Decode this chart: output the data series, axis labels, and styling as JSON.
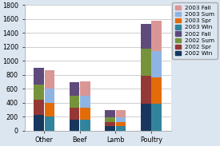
{
  "categories": [
    "Other",
    "Beef",
    "Lamb",
    "Poultry"
  ],
  "series": {
    "2002 Win": {
      "values": [
        220,
        155,
        65,
        390
      ],
      "color": "#17375E"
    },
    "2002 Spr": {
      "values": [
        220,
        175,
        55,
        390
      ],
      "color": "#953735"
    },
    "2002 Sum": {
      "values": [
        220,
        165,
        75,
        390
      ],
      "color": "#76933C"
    },
    "2002 Fall": {
      "values": [
        240,
        195,
        95,
        360
      ],
      "color": "#604A7B"
    },
    "2003 Win": {
      "values": [
        200,
        155,
        65,
        380
      ],
      "color": "#31849B"
    },
    "2003 Spr": {
      "values": [
        200,
        175,
        55,
        380
      ],
      "color": "#E36C09"
    },
    "2003 Sum": {
      "values": [
        200,
        165,
        75,
        380
      ],
      "color": "#8EB4E3"
    },
    "2003 Fall": {
      "values": [
        270,
        205,
        100,
        440
      ],
      "color": "#D99694"
    }
  },
  "year2002_order": [
    "2002 Win",
    "2002 Spr",
    "2002 Sum",
    "2002 Fall"
  ],
  "year2003_order": [
    "2003 Win",
    "2003 Spr",
    "2003 Sum",
    "2003 Fall"
  ],
  "legend_order": [
    "2003 Fall",
    "2003 Sum",
    "2003 Spr",
    "2003 Win",
    "2002 Fall",
    "2002 Sum",
    "2002 Spr",
    "2002 Win"
  ],
  "ylim": [
    0,
    1800
  ],
  "yticks": [
    0,
    200,
    400,
    600,
    800,
    1000,
    1200,
    1400,
    1600,
    1800
  ],
  "bar_width": 0.28,
  "background_color": "#DCE6F1",
  "plot_bg_color": "#FFFFFF",
  "grid_color": "#BBBBBB",
  "legend_fontsize": 5.2,
  "tick_fontsize": 5.8
}
